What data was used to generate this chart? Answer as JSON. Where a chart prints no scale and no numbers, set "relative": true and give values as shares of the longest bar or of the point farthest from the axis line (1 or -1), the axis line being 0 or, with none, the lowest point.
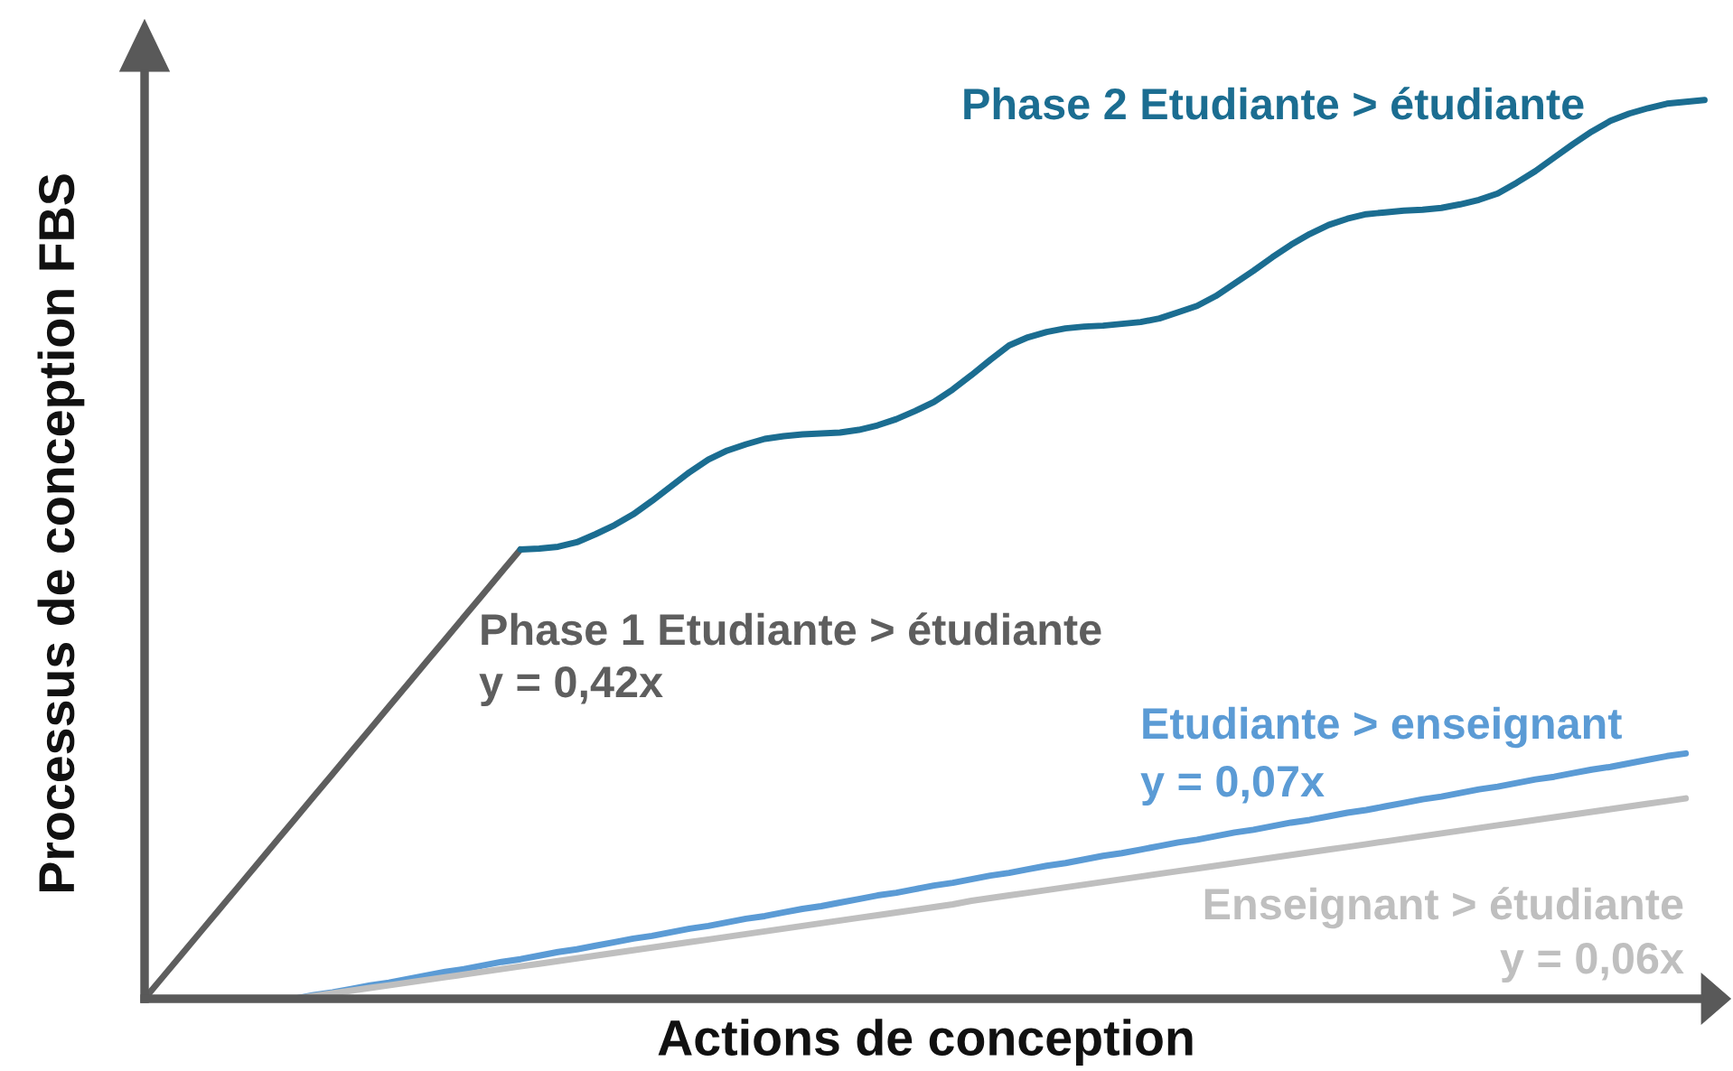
{
  "chart_data": {
    "type": "line",
    "relative": true,
    "xlabel": "Actions de conception",
    "ylabel": "Processus de conception FBS",
    "categories": [
      null,
      null,
      null,
      null,
      null,
      null,
      null,
      null,
      null,
      null,
      null,
      null,
      null,
      null,
      null,
      null,
      null,
      null,
      null,
      null,
      null,
      null,
      null,
      null,
      null,
      null,
      null,
      null,
      null,
      null,
      null,
      null,
      null,
      null,
      null,
      null,
      null,
      null,
      null,
      null,
      null,
      null,
      null,
      null,
      null,
      null,
      null,
      null,
      null,
      null,
      null,
      null,
      null,
      null,
      null,
      null,
      null,
      null,
      null,
      null,
      null,
      null,
      null,
      null,
      null,
      null,
      null,
      null,
      null,
      null,
      null,
      null,
      null,
      null,
      null,
      null,
      null,
      null,
      null,
      null,
      null,
      null,
      null,
      null
    ],
    "series": [
      {
        "name": "Phase 1 Etudiante > étudiante",
        "color": "#5e5e5e",
        "values": [
          0,
          0.025,
          0.05,
          0.075,
          0.1,
          0.125,
          0.15,
          0.175,
          0.2,
          0.225,
          0.25,
          0.275,
          0.3,
          0.325,
          0.35,
          0.375,
          0.4,
          0.425,
          0.45,
          0.475,
          0.5,
          null,
          null,
          null,
          null,
          null,
          null,
          null,
          null,
          null,
          null,
          null,
          null,
          null,
          null,
          null,
          null,
          null,
          null,
          null,
          null,
          null,
          null,
          null,
          null,
          null,
          null,
          null,
          null,
          null,
          null,
          null,
          null,
          null,
          null,
          null,
          null,
          null,
          null,
          null,
          null,
          null,
          null,
          null,
          null,
          null,
          null,
          null,
          null,
          null,
          null,
          null,
          null,
          null,
          null,
          null,
          null,
          null,
          null,
          null,
          null,
          null,
          null,
          null
        ]
      },
      {
        "name": "Etudiante > enseignant",
        "color": "#5b9bd5",
        "values": [
          null,
          null,
          null,
          null,
          null,
          null,
          null,
          null,
          0,
          0.004,
          0.007,
          0.011,
          0.015,
          0.018,
          0.022,
          0.026,
          0.03,
          0.033,
          0.037,
          0.041,
          0.044,
          0.048,
          0.052,
          0.055,
          0.059,
          0.063,
          0.067,
          0.07,
          0.074,
          0.078,
          0.081,
          0.085,
          0.089,
          0.092,
          0.096,
          0.1,
          0.103,
          0.107,
          0.111,
          0.115,
          0.118,
          0.122,
          0.126,
          0.129,
          0.133,
          0.137,
          0.14,
          0.144,
          0.148,
          0.151,
          0.155,
          0.159,
          0.162,
          0.166,
          0.17,
          0.174,
          0.177,
          0.181,
          0.185,
          0.188,
          0.192,
          0.196,
          0.199,
          0.203,
          0.207,
          0.21,
          0.214,
          0.218,
          0.222,
          0.225,
          0.229,
          0.233,
          0.236,
          0.24,
          0.244,
          0.247,
          0.251,
          0.255,
          0.258,
          0.262,
          0.266,
          0.27,
          0.273,
          null
        ]
      },
      {
        "name": "Enseignant > étudiante",
        "color": "#bfbfbf",
        "values": [
          null,
          null,
          null,
          null,
          null,
          null,
          null,
          null,
          0,
          0.003,
          0.006,
          0.009,
          0.012,
          0.015,
          0.018,
          0.021,
          0.024,
          0.027,
          0.03,
          0.033,
          0.036,
          0.039,
          0.042,
          0.045,
          0.048,
          0.051,
          0.054,
          0.057,
          0.06,
          0.063,
          0.066,
          0.069,
          0.072,
          0.075,
          0.078,
          0.081,
          0.084,
          0.087,
          0.09,
          0.093,
          0.096,
          0.099,
          0.102,
          0.105,
          0.109,
          0.112,
          0.115,
          0.118,
          0.121,
          0.124,
          0.127,
          0.13,
          0.133,
          0.136,
          0.139,
          0.142,
          0.145,
          0.148,
          0.151,
          0.154,
          0.157,
          0.16,
          0.163,
          0.166,
          0.169,
          0.172,
          0.175,
          0.178,
          0.181,
          0.184,
          0.187,
          0.19,
          0.193,
          0.196,
          0.199,
          0.202,
          0.205,
          0.208,
          0.211,
          0.214,
          0.217,
          0.22,
          0.223,
          null
        ]
      },
      {
        "name": "Phase 2 Etudiante > étudiante",
        "color": "#1b6d91",
        "values": [
          null,
          null,
          null,
          null,
          null,
          null,
          null,
          null,
          null,
          null,
          null,
          null,
          null,
          null,
          null,
          null,
          null,
          null,
          null,
          null,
          0.5,
          0.501,
          0.503,
          0.508,
          0.517,
          0.527,
          0.539,
          0.554,
          0.57,
          0.586,
          0.6,
          0.61,
          0.617,
          0.623,
          0.626,
          0.628,
          0.629,
          0.63,
          0.633,
          0.638,
          0.645,
          0.654,
          0.664,
          0.678,
          0.694,
          0.711,
          0.727,
          0.736,
          0.742,
          0.746,
          0.748,
          0.749,
          0.751,
          0.753,
          0.757,
          0.764,
          0.771,
          0.782,
          0.796,
          0.81,
          0.825,
          0.839,
          0.851,
          0.861,
          0.868,
          0.873,
          0.875,
          0.877,
          0.878,
          0.88,
          0.884,
          0.889,
          0.896,
          0.908,
          0.921,
          0.936,
          0.951,
          0.965,
          0.977,
          0.985,
          0.991,
          0.996,
          0.998,
          1.0
        ]
      }
    ],
    "annotations": [
      "y = 0,42x",
      "y = 0,07x",
      "y = 0,06x"
    ],
    "legend": false,
    "marker": "none",
    "line_style": "solid"
  }
}
